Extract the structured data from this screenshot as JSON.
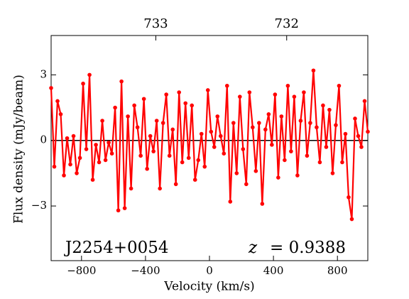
{
  "chart_data": {
    "type": "line",
    "xlabel": "Velocity (km/s)",
    "ylabel": "Flux density (mJy/beam)",
    "source_label": "J2254+0054",
    "z_label": "z",
    "z_value": "= 0.9388",
    "xlim": [
      -990,
      990
    ],
    "ylim": [
      -5.5,
      4.8
    ],
    "xticks": [
      {
        "value": -800,
        "label": "−800"
      },
      {
        "value": -400,
        "label": "−400"
      },
      0,
      400,
      800
    ],
    "yticks": [
      {
        "value": -3,
        "label": "−3"
      },
      0,
      3
    ],
    "x2lim": [
      733.8,
      731.38
    ],
    "x2ticks": [
      733,
      732
    ],
    "hline": 0,
    "x": [
      -990,
      -970,
      -950,
      -930,
      -910,
      -890,
      -870,
      -850,
      -830,
      -810,
      -790,
      -770,
      -750,
      -730,
      -710,
      -690,
      -670,
      -650,
      -630,
      -610,
      -590,
      -570,
      -550,
      -530,
      -510,
      -490,
      -470,
      -450,
      -430,
      -410,
      -390,
      -370,
      -350,
      -330,
      -310,
      -290,
      -270,
      -250,
      -230,
      -210,
      -190,
      -170,
      -150,
      -130,
      -110,
      -90,
      -70,
      -50,
      -30,
      -10,
      10,
      30,
      50,
      70,
      90,
      110,
      130,
      150,
      170,
      190,
      210,
      230,
      250,
      270,
      290,
      310,
      330,
      350,
      370,
      390,
      410,
      430,
      450,
      470,
      490,
      510,
      530,
      550,
      570,
      590,
      610,
      630,
      650,
      670,
      690,
      710,
      730,
      750,
      770,
      790,
      810,
      830,
      850,
      870,
      890,
      910,
      930,
      950,
      970,
      990
    ],
    "series": [
      {
        "color": "#ff0000",
        "values": [
          2.4,
          -1.2,
          1.8,
          1.2,
          -1.6,
          0.1,
          -1.1,
          0.2,
          -1.5,
          -0.8,
          2.6,
          -0.4,
          3.0,
          -1.8,
          -0.2,
          -1.0,
          0.9,
          -0.9,
          -0.1,
          -0.6,
          1.5,
          -3.2,
          2.7,
          -3.1,
          1.1,
          -2.2,
          1.6,
          0.6,
          -0.7,
          1.9,
          -1.3,
          0.2,
          -0.5,
          0.9,
          -2.2,
          0.8,
          2.1,
          -0.7,
          0.5,
          -2.0,
          2.2,
          -1.0,
          1.7,
          -0.8,
          1.6,
          -1.8,
          -0.9,
          0.3,
          -1.2,
          2.3,
          0.4,
          -0.3,
          1.1,
          0.2,
          -0.6,
          2.5,
          -2.8,
          0.8,
          -1.5,
          2.0,
          -0.4,
          -2.0,
          2.2,
          0.6,
          -1.4,
          0.8,
          -2.9,
          0.5,
          1.2,
          -0.2,
          2.1,
          -1.7,
          1.1,
          -0.9,
          2.5,
          -0.5,
          2.0,
          -1.6,
          0.9,
          2.2,
          -0.7,
          0.8,
          3.2,
          0.6,
          -1.0,
          1.6,
          -0.3,
          1.4,
          -1.5,
          0.7,
          2.5,
          -1.0,
          0.3,
          -2.6,
          -3.6,
          1.0,
          0.2,
          -0.3,
          1.8,
          0.4
        ]
      }
    ]
  }
}
